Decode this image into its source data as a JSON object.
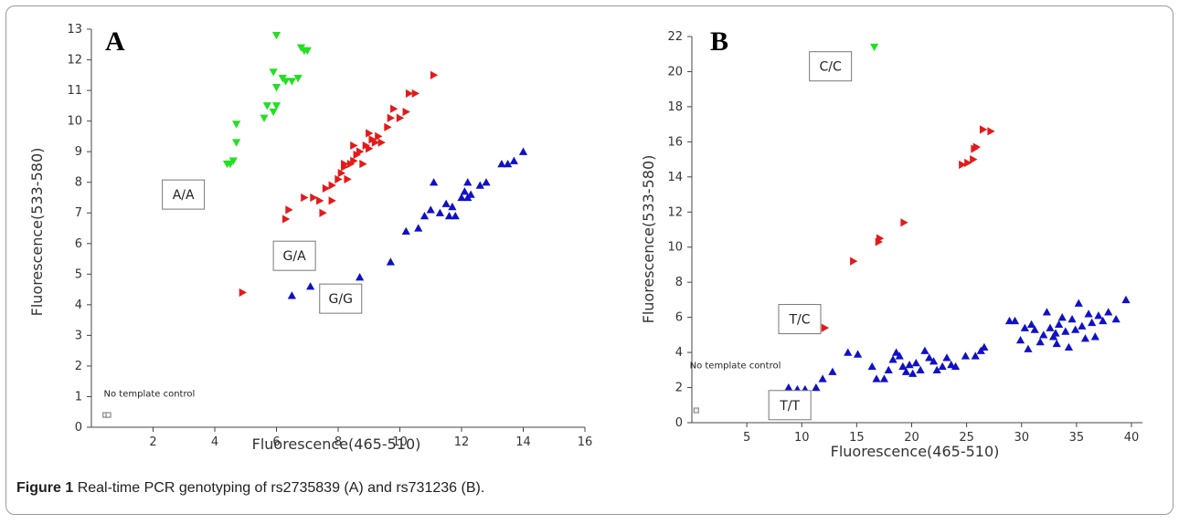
{
  "caption": {
    "label": "Figure 1",
    "text": "Real-time PCR genotyping of rs2735839 (A) and rs731236 (B)."
  },
  "colors": {
    "green": "#22e022",
    "red": "#e41a1a",
    "blue": "#1010c8",
    "gray": "#888888"
  },
  "chart_data": [
    {
      "type": "scatter",
      "panel_label": "A",
      "xlabel": "Fluorescence(465-510)",
      "ylabel": "Fluorescence(533-580)",
      "xlim": [
        0,
        16
      ],
      "ylim": [
        0,
        13
      ],
      "xticks": [
        2,
        4,
        6,
        8,
        10,
        12,
        14,
        16
      ],
      "yticks": [
        0,
        1,
        2,
        3,
        4,
        5,
        6,
        7,
        8,
        9,
        10,
        11,
        12,
        13
      ],
      "annotations": [
        {
          "text": "A/A",
          "boxed": true,
          "x": 2.3,
          "y": 7.6
        },
        {
          "text": "G/A",
          "boxed": true,
          "x": 5.9,
          "y": 5.6
        },
        {
          "text": "G/G",
          "boxed": true,
          "x": 7.4,
          "y": 4.2
        },
        {
          "text": "No template control",
          "boxed": false,
          "x": 0.4,
          "y": 1.0
        }
      ],
      "series": [
        {
          "marker": "triangle-down",
          "color": "#22e022",
          "points": [
            [
              4.4,
              8.6
            ],
            [
              4.5,
              8.6
            ],
            [
              4.6,
              8.7
            ],
            [
              4.7,
              9.3
            ],
            [
              4.7,
              9.9
            ],
            [
              5.6,
              10.1
            ],
            [
              5.7,
              10.5
            ],
            [
              5.9,
              10.3
            ],
            [
              6.0,
              10.5
            ],
            [
              5.9,
              11.6
            ],
            [
              6.0,
              11.1
            ],
            [
              6.2,
              11.4
            ],
            [
              6.3,
              11.3
            ],
            [
              6.5,
              11.3
            ],
            [
              6.7,
              11.4
            ],
            [
              6.0,
              12.8
            ],
            [
              6.8,
              12.4
            ],
            [
              7.0,
              12.3
            ],
            [
              6.9,
              12.3
            ]
          ]
        },
        {
          "marker": "triangle-right",
          "color": "#e41a1a",
          "points": [
            [
              4.9,
              4.4
            ],
            [
              6.3,
              6.8
            ],
            [
              6.4,
              7.1
            ],
            [
              6.9,
              7.5
            ],
            [
              7.2,
              7.5
            ],
            [
              7.4,
              7.4
            ],
            [
              7.5,
              7.0
            ],
            [
              7.6,
              7.8
            ],
            [
              7.8,
              7.9
            ],
            [
              7.8,
              7.4
            ],
            [
              8.0,
              8.1
            ],
            [
              8.1,
              8.3
            ],
            [
              8.2,
              8.5
            ],
            [
              8.3,
              8.1
            ],
            [
              8.4,
              8.6
            ],
            [
              8.5,
              8.7
            ],
            [
              8.6,
              8.9
            ],
            [
              8.7,
              9.0
            ],
            [
              8.8,
              8.6
            ],
            [
              8.9,
              9.2
            ],
            [
              9.0,
              9.1
            ],
            [
              9.1,
              9.4
            ],
            [
              9.2,
              9.3
            ],
            [
              9.3,
              9.5
            ],
            [
              9.4,
              9.3
            ],
            [
              9.6,
              9.8
            ],
            [
              9.7,
              10.1
            ],
            [
              9.8,
              10.4
            ],
            [
              10.0,
              10.1
            ],
            [
              10.2,
              10.3
            ],
            [
              10.3,
              10.9
            ],
            [
              10.5,
              10.9
            ],
            [
              11.1,
              11.5
            ],
            [
              8.2,
              8.6
            ],
            [
              8.5,
              9.2
            ],
            [
              9.0,
              9.6
            ]
          ]
        },
        {
          "marker": "triangle-up",
          "color": "#1010c8",
          "points": [
            [
              6.5,
              4.3
            ],
            [
              7.1,
              4.6
            ],
            [
              8.7,
              4.9
            ],
            [
              9.7,
              5.4
            ],
            [
              10.2,
              6.4
            ],
            [
              10.6,
              6.5
            ],
            [
              10.8,
              6.9
            ],
            [
              11.0,
              7.1
            ],
            [
              11.1,
              8.0
            ],
            [
              11.3,
              7.0
            ],
            [
              11.5,
              7.3
            ],
            [
              11.6,
              6.9
            ],
            [
              11.7,
              7.2
            ],
            [
              11.8,
              6.9
            ],
            [
              12.0,
              7.5
            ],
            [
              12.1,
              7.7
            ],
            [
              12.2,
              7.5
            ],
            [
              12.3,
              7.6
            ],
            [
              12.2,
              8.0
            ],
            [
              12.6,
              7.9
            ],
            [
              12.8,
              8.0
            ],
            [
              13.3,
              8.6
            ],
            [
              13.5,
              8.6
            ],
            [
              13.7,
              8.7
            ],
            [
              14.0,
              9.0
            ]
          ]
        },
        {
          "marker": "square",
          "color": "#888888",
          "points": [
            [
              0.45,
              0.4
            ],
            [
              0.55,
              0.4
            ]
          ]
        }
      ]
    },
    {
      "type": "scatter",
      "panel_label": "B",
      "xlabel": "Fluorescence(465-510)",
      "ylabel": "Fluorescence(533-580)",
      "xlim": [
        0,
        41
      ],
      "ylim": [
        0,
        22
      ],
      "xticks": [
        5,
        10,
        15,
        20,
        25,
        30,
        35,
        40
      ],
      "yticks": [
        0,
        2,
        4,
        6,
        8,
        10,
        12,
        14,
        16,
        18,
        20,
        22
      ],
      "annotations": [
        {
          "text": "C/C",
          "boxed": true,
          "x": 10.7,
          "y": 20.3
        },
        {
          "text": "T/C",
          "boxed": true,
          "x": 7.9,
          "y": 5.9
        },
        {
          "text": "T/T",
          "boxed": true,
          "x": 7.0,
          "y": 1.0
        },
        {
          "text": "No template control",
          "boxed": false,
          "x": -0.2,
          "y": 3.1
        }
      ],
      "series": [
        {
          "marker": "triangle-down",
          "color": "#22e022",
          "points": [
            [
              16.6,
              21.4
            ]
          ]
        },
        {
          "marker": "triangle-right",
          "color": "#e41a1a",
          "points": [
            [
              12.1,
              5.4
            ],
            [
              14.7,
              9.2
            ],
            [
              17.0,
              10.3
            ],
            [
              17.1,
              10.5
            ],
            [
              19.3,
              11.4
            ],
            [
              24.6,
              14.7
            ],
            [
              25.1,
              14.8
            ],
            [
              25.6,
              15.0
            ],
            [
              25.7,
              15.6
            ],
            [
              25.9,
              15.7
            ],
            [
              26.5,
              16.7
            ],
            [
              27.2,
              16.6
            ]
          ]
        },
        {
          "marker": "triangle-up",
          "color": "#1010c8",
          "points": [
            [
              8.8,
              2.0
            ],
            [
              9.6,
              1.9
            ],
            [
              10.3,
              1.9
            ],
            [
              11.3,
              2.0
            ],
            [
              11.9,
              2.5
            ],
            [
              12.8,
              2.9
            ],
            [
              14.2,
              4.0
            ],
            [
              15.1,
              3.9
            ],
            [
              16.4,
              3.2
            ],
            [
              16.8,
              2.5
            ],
            [
              17.5,
              2.5
            ],
            [
              17.9,
              3.0
            ],
            [
              18.3,
              3.6
            ],
            [
              18.6,
              4.0
            ],
            [
              18.9,
              3.8
            ],
            [
              19.2,
              3.2
            ],
            [
              19.5,
              2.9
            ],
            [
              19.8,
              3.3
            ],
            [
              20.1,
              2.8
            ],
            [
              20.4,
              3.4
            ],
            [
              20.8,
              3.0
            ],
            [
              21.2,
              4.1
            ],
            [
              21.6,
              3.7
            ],
            [
              22.0,
              3.5
            ],
            [
              22.3,
              3.0
            ],
            [
              22.8,
              3.2
            ],
            [
              23.2,
              3.7
            ],
            [
              23.6,
              3.3
            ],
            [
              24.0,
              3.2
            ],
            [
              24.9,
              3.8
            ],
            [
              25.8,
              3.8
            ],
            [
              26.3,
              4.1
            ],
            [
              26.6,
              4.3
            ],
            [
              29.4,
              5.8
            ],
            [
              29.9,
              4.7
            ],
            [
              30.3,
              5.4
            ],
            [
              30.6,
              4.2
            ],
            [
              30.9,
              5.6
            ],
            [
              31.2,
              5.3
            ],
            [
              31.7,
              4.6
            ],
            [
              32.0,
              5.0
            ],
            [
              32.3,
              6.3
            ],
            [
              32.6,
              5.4
            ],
            [
              32.9,
              4.9
            ],
            [
              33.2,
              4.5
            ],
            [
              33.4,
              5.6
            ],
            [
              33.7,
              6.0
            ],
            [
              34.0,
              5.2
            ],
            [
              34.3,
              4.3
            ],
            [
              34.6,
              5.9
            ],
            [
              34.9,
              5.3
            ],
            [
              35.2,
              6.8
            ],
            [
              35.5,
              5.5
            ],
            [
              35.8,
              4.8
            ],
            [
              36.1,
              6.2
            ],
            [
              36.4,
              5.7
            ],
            [
              36.7,
              4.9
            ],
            [
              37.0,
              6.1
            ],
            [
              37.4,
              5.8
            ],
            [
              37.9,
              6.3
            ],
            [
              38.6,
              5.9
            ],
            [
              39.5,
              7.0
            ],
            [
              28.9,
              5.8
            ],
            [
              33.1,
              5.1
            ]
          ]
        },
        {
          "marker": "square",
          "color": "#888888",
          "points": [
            [
              0.4,
              0.7
            ]
          ]
        }
      ]
    }
  ]
}
